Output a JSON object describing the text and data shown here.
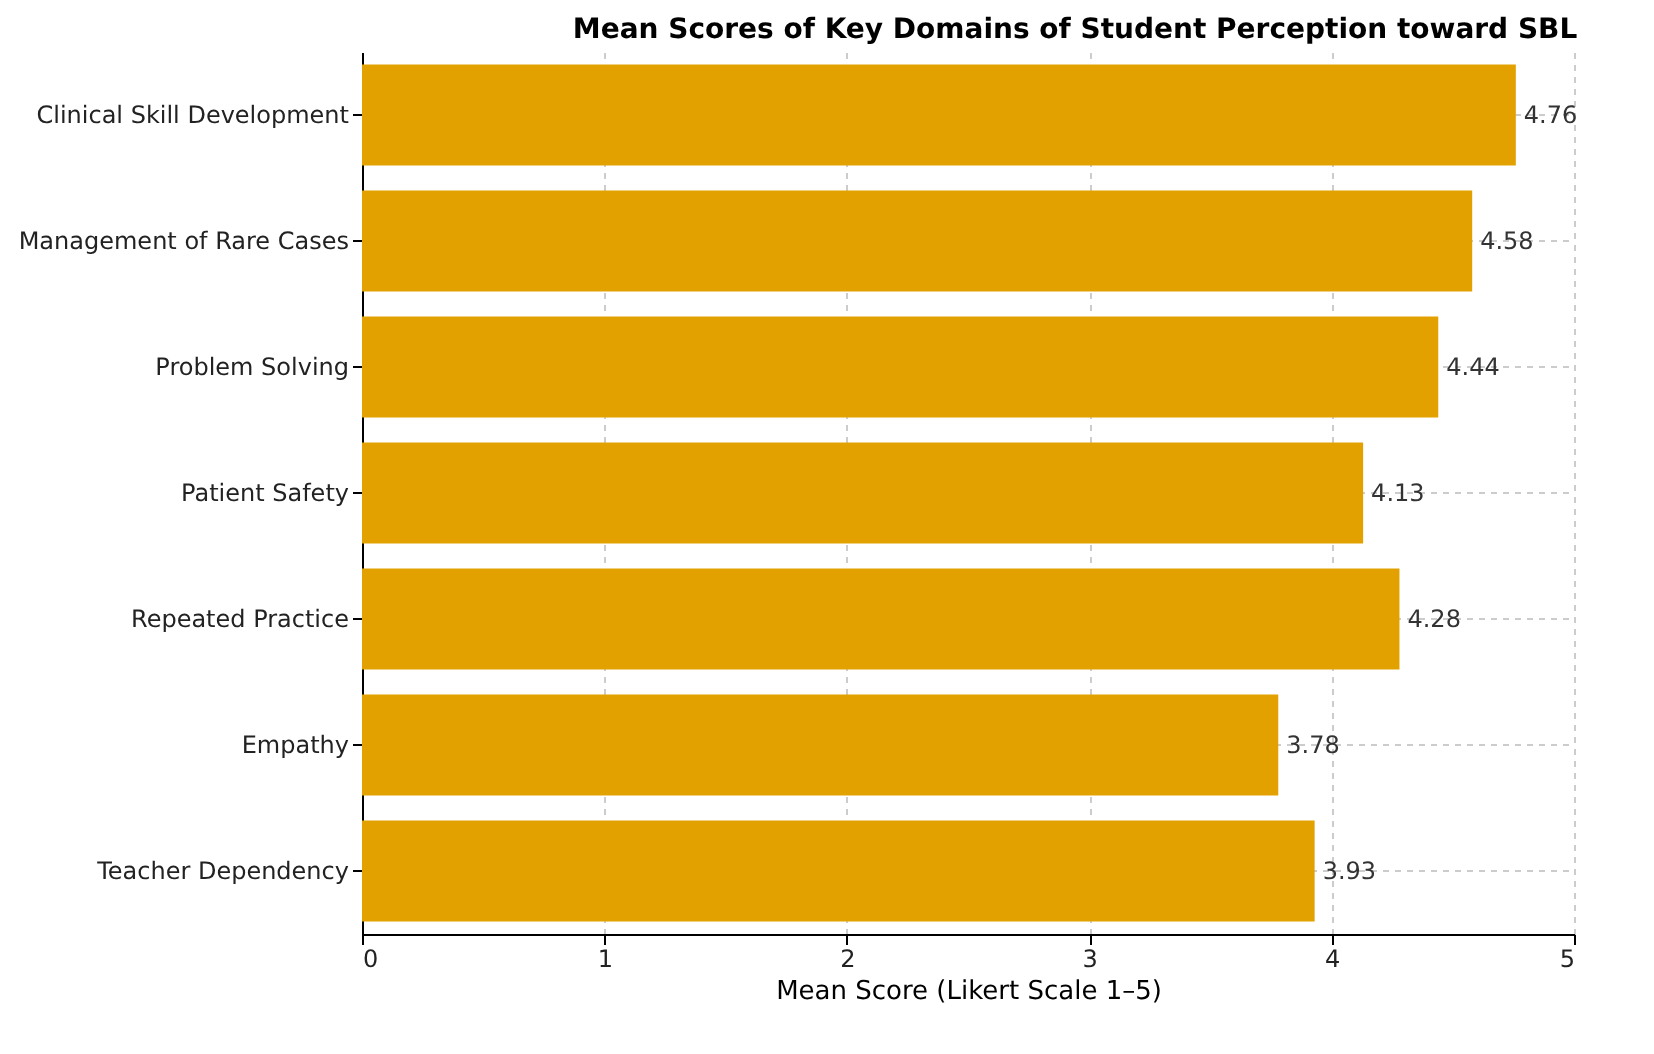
{
  "chart_data": {
    "type": "bar",
    "orientation": "horizontal",
    "title": "Mean Scores of Key Domains of Student Perception toward SBL",
    "categories": [
      "Clinical Skill Development",
      "Management of Rare Cases",
      "Problem Solving",
      "Patient Safety",
      "Repeated Practice",
      "Empathy",
      "Teacher Dependency"
    ],
    "values": [
      4.76,
      4.58,
      4.44,
      4.13,
      4.28,
      3.78,
      3.93
    ],
    "color": "#e3a100",
    "xlabel": "Mean Score (Likert Scale 1–5)",
    "xlim": [
      0,
      5
    ],
    "xticks": [
      0,
      1,
      2,
      3,
      4,
      5
    ],
    "grid": true,
    "data_labels": true
  }
}
